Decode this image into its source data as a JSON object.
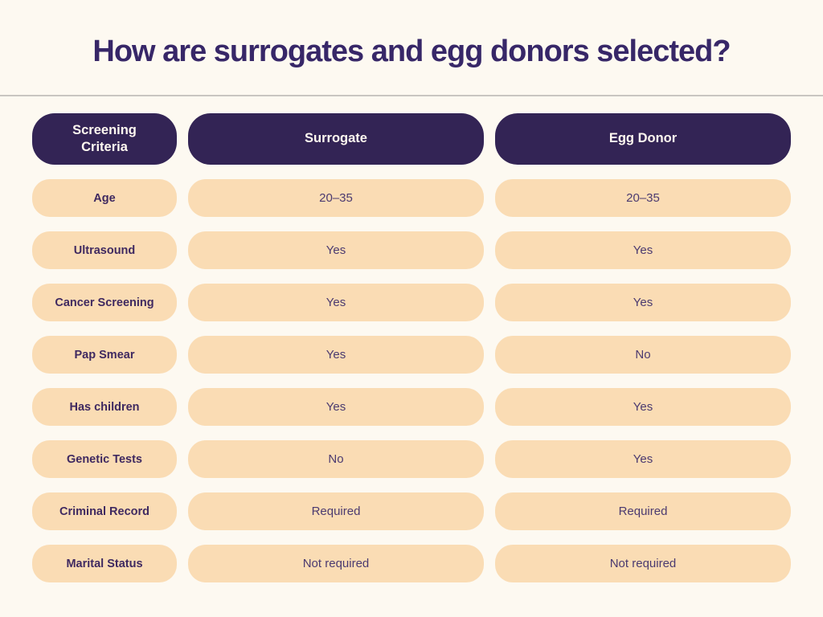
{
  "page": {
    "title": "How are surrogates and egg donors selected?"
  },
  "colors": {
    "background": "#FDF9F1",
    "title_text": "#372768",
    "divider": "#C9C6C1",
    "header_pill_bg": "#332455",
    "header_pill_text": "#FFF8F0",
    "cell_pill_bg": "#FADCB4",
    "row_label_text": "#3F2960",
    "value_text": "#4B3A70"
  },
  "chart_data": {
    "type": "table",
    "title": "How are surrogates and egg donors selected?",
    "legend_position": "none",
    "grid": false,
    "columns": [
      "Screening Criteria",
      "Surrogate",
      "Egg Donor"
    ],
    "rows": [
      [
        "Age",
        "20–35",
        "20–35"
      ],
      [
        "Ultrasound",
        "Yes",
        "Yes"
      ],
      [
        "Cancer Screening",
        "Yes",
        "Yes"
      ],
      [
        "Pap Smear",
        "Yes",
        "No"
      ],
      [
        "Has children",
        "Yes",
        "Yes"
      ],
      [
        "Genetic Tests",
        "No",
        "Yes"
      ],
      [
        "Criminal Record",
        "Required",
        "Required"
      ],
      [
        "Marital Status",
        "Not required",
        "Not required"
      ]
    ]
  }
}
